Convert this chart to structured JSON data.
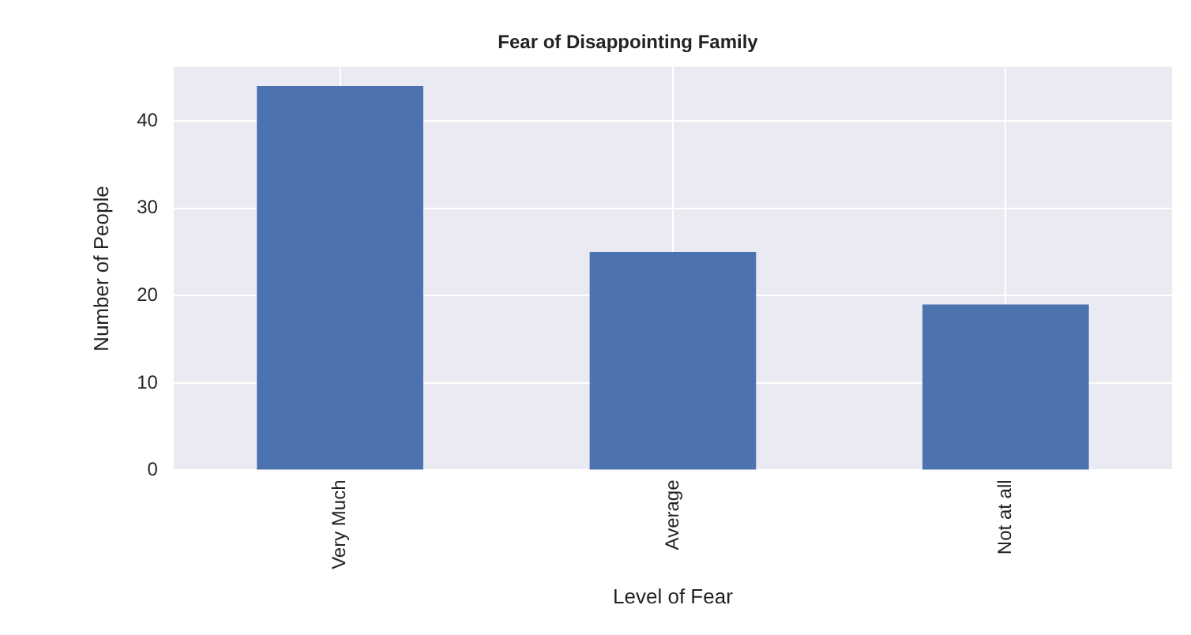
{
  "chart_data": {
    "type": "bar",
    "title": "Fear of Disappointing Family",
    "xlabel": "Level of Fear",
    "ylabel": "Number of People",
    "categories": [
      "Very Much",
      "Average",
      "Not at all"
    ],
    "values": [
      44,
      25,
      19
    ],
    "color": "#4c72b0",
    "ylim": [
      0,
      46.2
    ],
    "yticks": [
      0,
      10,
      20,
      30,
      40
    ],
    "grid": true,
    "legend": false
  }
}
